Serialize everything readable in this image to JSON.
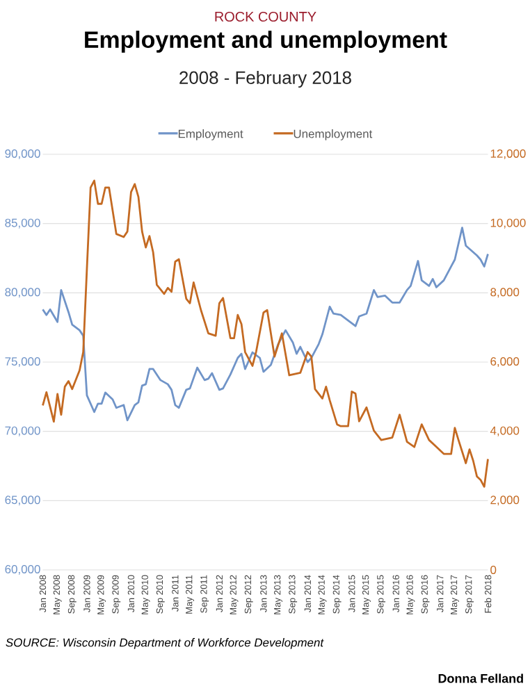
{
  "chart_data": {
    "type": "line",
    "title": "Employment and unemployment",
    "subtitle": "2008 - February 2018",
    "annotations": [
      "ROCK COUNTY",
      "SOURCE: Wisconsin Department of Workforce Development",
      "Donna Felland"
    ],
    "legend": "top",
    "grid": "y",
    "line_style": "solid",
    "xlim": [
      "2008-01",
      "2018-02"
    ],
    "xticks": [
      {
        "value": "2008-01",
        "label": "Jan 2008"
      },
      {
        "value": "2008-05",
        "label": "May 2008"
      },
      {
        "value": "2008-09",
        "label": "Sep 2008"
      },
      {
        "value": "2009-01",
        "label": "Jan 2009"
      },
      {
        "value": "2009-05",
        "label": "May 2009"
      },
      {
        "value": "2009-09",
        "label": "Sep 2009"
      },
      {
        "value": "2010-01",
        "label": "Jan 2010"
      },
      {
        "value": "2010-05",
        "label": "May 2010"
      },
      {
        "value": "2010-09",
        "label": "Sep 2010"
      },
      {
        "value": "2011-01",
        "label": "Jan 2011"
      },
      {
        "value": "2011-05",
        "label": "May 2011"
      },
      {
        "value": "2011-09",
        "label": "Sep 2011"
      },
      {
        "value": "2012-01",
        "label": "Jan 2012"
      },
      {
        "value": "2012-05",
        "label": "May 2012"
      },
      {
        "value": "2012-09",
        "label": "Sep 2012"
      },
      {
        "value": "2013-01",
        "label": "Jan 2013"
      },
      {
        "value": "2013-05",
        "label": "May 2013"
      },
      {
        "value": "2013-09",
        "label": "Sep 2013"
      },
      {
        "value": "2014-01",
        "label": "Jan 2014"
      },
      {
        "value": "2014-05",
        "label": "May 2014"
      },
      {
        "value": "2014-09",
        "label": "Sep 2014"
      },
      {
        "value": "2015-01",
        "label": "Jan 2015"
      },
      {
        "value": "2015-05",
        "label": "May 2015"
      },
      {
        "value": "2015-09",
        "label": "Sep 2015"
      },
      {
        "value": "2016-01",
        "label": "Jan 2016"
      },
      {
        "value": "2016-05",
        "label": "May 2016"
      },
      {
        "value": "2016-09",
        "label": "Sep 2016"
      },
      {
        "value": "2017-01",
        "label": "Jan 2017"
      },
      {
        "value": "2017-05",
        "label": "May 2017"
      },
      {
        "value": "2017-09",
        "label": "Sep 2017"
      },
      {
        "value": "2018-02",
        "label": "Feb 2018"
      }
    ],
    "ylim": [
      60000,
      90000
    ],
    "yticks": [
      {
        "value": 60000,
        "label": "60,000"
      },
      {
        "value": 65000,
        "label": "65,000"
      },
      {
        "value": 70000,
        "label": "70,000"
      },
      {
        "value": 75000,
        "label": "75,000"
      },
      {
        "value": 80000,
        "label": "80,000"
      },
      {
        "value": 85000,
        "label": "85,000"
      },
      {
        "value": 90000,
        "label": "90,000"
      }
    ],
    "y2lim": [
      0,
      12000
    ],
    "y2ticks": [
      0,
      {
        "value": 2000,
        "label": "2,000"
      },
      {
        "value": 4000,
        "label": "4,000"
      },
      {
        "value": 6000,
        "label": "6,000"
      },
      {
        "value": 8000,
        "label": "8,000"
      },
      {
        "value": 10000,
        "label": "10,000"
      },
      {
        "value": 12000,
        "label": "12,000"
      }
    ],
    "series": [
      {
        "name": "Employment",
        "color": "#7094c8",
        "x": [
          "2008-01",
          "2008-02",
          "2008-03",
          "2008-05",
          "2008-06",
          "2008-08",
          "2008-09",
          "2008-11",
          "2008-12",
          "2009-01",
          "2009-03",
          "2009-04",
          "2009-05",
          "2009-06",
          "2009-08",
          "2009-09",
          "2009-11",
          "2009-12",
          "2010-02",
          "2010-03",
          "2010-04",
          "2010-05",
          "2010-06",
          "2010-07",
          "2010-09",
          "2010-11",
          "2010-12",
          "2011-01",
          "2011-02",
          "2011-04",
          "2011-05",
          "2011-07",
          "2011-09",
          "2011-10",
          "2011-11",
          "2012-01",
          "2012-02",
          "2012-04",
          "2012-06",
          "2012-07",
          "2012-08",
          "2012-10",
          "2012-12",
          "2013-01",
          "2013-03",
          "2013-05",
          "2013-07",
          "2013-09",
          "2013-10",
          "2013-11",
          "2014-01",
          "2014-02",
          "2014-04",
          "2014-05",
          "2014-07",
          "2014-08",
          "2014-10",
          "2014-12",
          "2015-02",
          "2015-03",
          "2015-05",
          "2015-07",
          "2015-08",
          "2015-10",
          "2015-12",
          "2016-02",
          "2016-04",
          "2016-05",
          "2016-07",
          "2016-08",
          "2016-10",
          "2016-11",
          "2016-12",
          "2017-02",
          "2017-04",
          "2017-05",
          "2017-07",
          "2017-08",
          "2017-11",
          "2017-12",
          "2018-01",
          "2018-02"
        ],
        "values": [
          78800,
          78400,
          78800,
          77900,
          80200,
          78600,
          77700,
          77300,
          76900,
          72600,
          71400,
          72000,
          72000,
          72800,
          72300,
          71700,
          71900,
          70800,
          71900,
          72100,
          73300,
          73400,
          74500,
          74500,
          73700,
          73400,
          73000,
          71900,
          71700,
          73000,
          73100,
          74600,
          73700,
          73800,
          74200,
          73000,
          73100,
          74100,
          75300,
          75600,
          74500,
          75700,
          75300,
          74300,
          74800,
          76300,
          77300,
          76400,
          75600,
          76100,
          75000,
          75300,
          76300,
          77000,
          79000,
          78500,
          78400,
          78000,
          77600,
          78300,
          78500,
          80200,
          79700,
          79800,
          79300,
          79300,
          80200,
          80500,
          82300,
          80900,
          80500,
          81000,
          80400,
          80900,
          81900,
          82400,
          84700,
          83400,
          82700,
          82400,
          81900,
          82800
        ]
      },
      {
        "name": "Unemployment",
        "color": "#c46a22",
        "axis": "y2",
        "x": [
          "2008-01",
          "2008-02",
          "2008-04",
          "2008-05",
          "2008-06",
          "2008-07",
          "2008-08",
          "2008-09",
          "2008-11",
          "2008-12",
          "2009-01",
          "2009-02",
          "2009-03",
          "2009-04",
          "2009-05",
          "2009-06",
          "2009-07",
          "2009-09",
          "2009-11",
          "2009-12",
          "2010-01",
          "2010-02",
          "2010-03",
          "2010-04",
          "2010-05",
          "2010-06",
          "2010-07",
          "2010-08",
          "2010-10",
          "2010-11",
          "2010-12",
          "2011-01",
          "2011-02",
          "2011-04",
          "2011-05",
          "2011-06",
          "2011-08",
          "2011-10",
          "2011-12",
          "2012-01",
          "2012-02",
          "2012-04",
          "2012-05",
          "2012-06",
          "2012-07",
          "2012-08",
          "2012-10",
          "2012-11",
          "2013-01",
          "2013-02",
          "2013-04",
          "2013-06",
          "2013-08",
          "2013-11",
          "2014-01",
          "2014-02",
          "2014-03",
          "2014-05",
          "2014-06",
          "2014-07",
          "2014-09",
          "2014-10",
          "2014-12",
          "2015-01",
          "2015-02",
          "2015-03",
          "2015-05",
          "2015-07",
          "2015-09",
          "2015-12",
          "2016-02",
          "2016-04",
          "2016-06",
          "2016-08",
          "2016-10",
          "2016-12",
          "2017-02",
          "2017-04",
          "2017-05",
          "2017-06",
          "2017-08",
          "2017-09",
          "2017-10",
          "2017-11",
          "2017-12",
          "2018-01",
          "2018-02"
        ],
        "values": [
          4750,
          5130,
          4280,
          5080,
          4480,
          5290,
          5450,
          5220,
          5760,
          6290,
          8700,
          11040,
          11240,
          10570,
          10570,
          11040,
          11040,
          9700,
          9610,
          9770,
          10910,
          11140,
          10770,
          9770,
          9310,
          9640,
          9170,
          8230,
          7970,
          8140,
          8030,
          8900,
          8970,
          7830,
          7700,
          8300,
          7500,
          6830,
          6760,
          7700,
          7850,
          6690,
          6690,
          7360,
          7100,
          6290,
          5890,
          6300,
          7430,
          7500,
          6160,
          6830,
          5620,
          5690,
          6290,
          6160,
          5220,
          4950,
          5290,
          4900,
          4200,
          4150,
          4150,
          5150,
          5090,
          4290,
          4690,
          4020,
          3750,
          3820,
          4480,
          3700,
          3550,
          4200,
          3750,
          3550,
          3350,
          3350,
          4100,
          3750,
          3080,
          3480,
          3150,
          2700,
          2600,
          2400,
          3200
        ]
      }
    ]
  }
}
